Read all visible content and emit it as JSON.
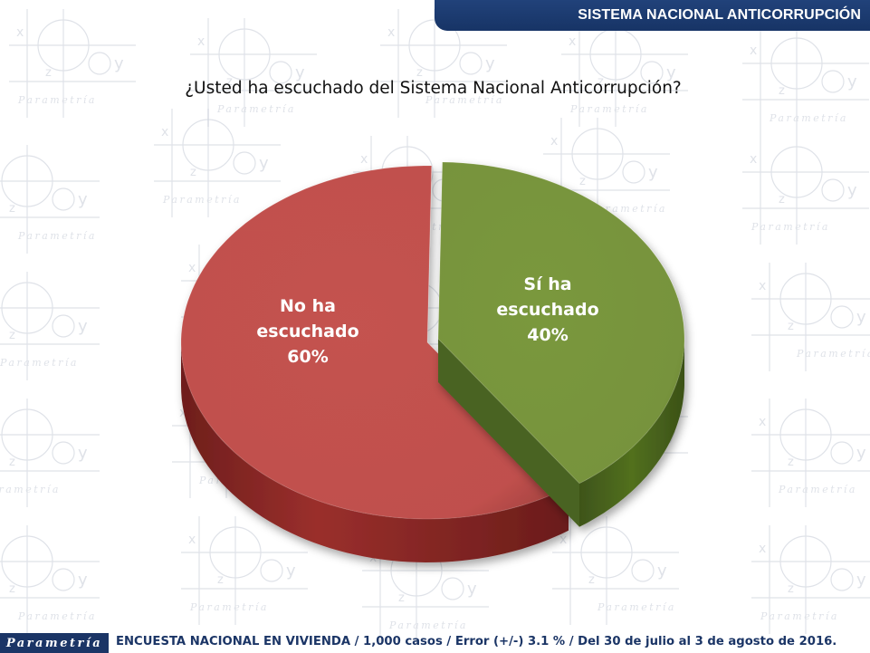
{
  "header": {
    "title": "SISTEMA NACIONAL ANTICORRUPCIÓN"
  },
  "question": "¿Usted ha escuchado del Sistema Nacional Anticorrupción?",
  "chart_data": {
    "type": "pie",
    "title": "¿Usted ha escuchado del Sistema Nacional Anticorrupción?",
    "categories": [
      "No ha escuchado",
      "Sí ha escuchado"
    ],
    "values": [
      60,
      40
    ],
    "unit": "%",
    "colors": [
      "#c0504d",
      "#77933c"
    ],
    "data_labels": [
      [
        "No ha",
        "escuchado",
        "60%"
      ],
      [
        "Sí ha",
        "escuchado",
        "40%"
      ]
    ],
    "style": "3d-exploded"
  },
  "watermark": {
    "brand": "Parametría",
    "colors": {
      "pattern": "#c5cbd6"
    }
  },
  "footer": {
    "logo": "Parametría",
    "note": "ENCUESTA NACIONAL EN VIVIENDA / 1,000 casos / Error (+/-) 3.1 % / Del 30 de julio al 3 de agosto de 2016."
  }
}
